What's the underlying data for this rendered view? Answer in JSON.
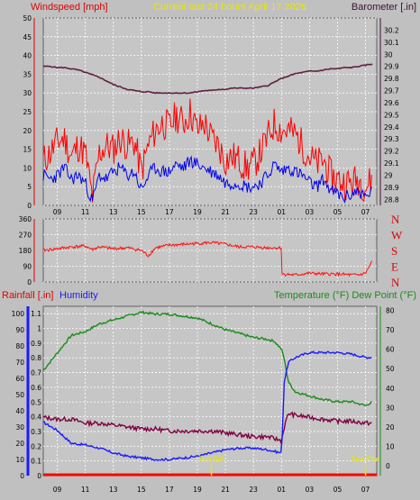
{
  "header": {
    "left_title": "Windspeed [mph]",
    "center_title": "Current last 24 hours April 17 2026",
    "right_title": "Barometer [.in]"
  },
  "bottom_header": {
    "rain_title": "Rainfall [.in]",
    "humidity_title": "Humidity",
    "temp_title": "Temperature (°F) Dew Point (°F)"
  },
  "direction_labels": [
    "N",
    "W",
    "S",
    "E",
    "N"
  ],
  "x_ticks": [
    "09",
    "11",
    "13",
    "15",
    "17",
    "19",
    "21",
    "23",
    "01",
    "03",
    "05",
    "07"
  ],
  "annotations": {
    "sunset": "Sun Set",
    "sunrise": "Sun Rise"
  },
  "colors": {
    "wind_avg": "#0000ee",
    "wind_gust": "#ff0000",
    "barometer": "#602040",
    "direction": "#ff1010",
    "temperature": "#1a8a1a",
    "dewpoint": "#800040",
    "humidity": "#1a1aff",
    "rain": "#ff0000"
  },
  "chart_data": [
    {
      "type": "line",
      "title": "Windspeed [mph]",
      "y_axis_left": {
        "label": "Windspeed [mph]",
        "ticks": [
          "0",
          "5",
          "10",
          "15",
          "20",
          "25",
          "30",
          "35",
          "40",
          "45",
          "50"
        ],
        "ylim": [
          0,
          50
        ]
      },
      "y_axis_right": {
        "label": "Barometer [.in]",
        "ticks": [
          "28.8",
          "28.9",
          "29",
          "29.1",
          "29.2",
          "29.3",
          "29.4",
          "29.5",
          "29.6",
          "29.7",
          "29.8",
          "29.9",
          "30",
          "30.1",
          "30.2"
        ],
        "ylim": [
          28.75,
          30.3
        ]
      },
      "x_hours": [
        8,
        8.5,
        9,
        9.5,
        10,
        10.5,
        11,
        11.5,
        12,
        12.5,
        13,
        13.5,
        14,
        14.5,
        15,
        15.5,
        16,
        16.5,
        17,
        17.5,
        18,
        18.5,
        19,
        19.5,
        20,
        20.5,
        21,
        21.5,
        22,
        22.5,
        23,
        23.5,
        24,
        24.5,
        25,
        25.5,
        26,
        26.5,
        27,
        27.5,
        28,
        28.5,
        29,
        29.5,
        30,
        30.5,
        31,
        31.5
      ],
      "series": [
        {
          "name": "Windspeed",
          "axis": "left",
          "values": [
            8,
            7,
            8,
            10,
            7,
            8,
            6,
            1,
            8,
            7,
            9,
            10,
            8,
            9,
            4,
            8,
            10,
            9,
            9,
            11,
            10,
            12,
            11,
            10,
            9,
            8,
            6,
            6,
            6,
            5,
            5,
            6,
            8,
            11,
            9,
            10,
            9,
            8,
            6,
            5,
            7,
            4,
            3,
            2,
            3,
            4,
            2,
            4
          ]
        },
        {
          "name": "Wind gust",
          "axis": "left",
          "values": [
            12,
            14,
            17,
            18,
            13,
            16,
            14,
            2,
            14,
            16,
            15,
            18,
            16,
            17,
            9,
            16,
            20,
            22,
            21,
            24,
            22,
            25,
            20,
            22,
            18,
            16,
            12,
            13,
            12,
            10,
            11,
            14,
            18,
            22,
            20,
            20,
            19,
            16,
            13,
            11,
            12,
            8,
            7,
            6,
            6,
            7,
            5,
            7
          ]
        },
        {
          "name": "Barometer",
          "axis": "right",
          "values": [
            29.9,
            29.9,
            29.89,
            29.89,
            29.88,
            29.87,
            29.85,
            29.83,
            29.81,
            29.78,
            29.75,
            29.73,
            29.71,
            29.7,
            29.69,
            29.69,
            29.68,
            29.68,
            29.68,
            29.68,
            29.68,
            29.68,
            29.69,
            29.7,
            29.7,
            29.71,
            29.71,
            29.72,
            29.72,
            29.72,
            29.72,
            29.73,
            29.74,
            29.77,
            29.8,
            29.82,
            29.84,
            29.85,
            29.86,
            29.86,
            29.87,
            29.88,
            29.88,
            29.89,
            29.89,
            29.9,
            29.91,
            29.92
          ]
        }
      ]
    },
    {
      "type": "line",
      "title": "Wind direction",
      "y_axis_left": {
        "ticks": [
          "0",
          "90",
          "180",
          "270",
          "360"
        ],
        "ylim": [
          0,
          360
        ]
      },
      "y_axis_right": {
        "labels": [
          "N",
          "W",
          "S",
          "E",
          "N"
        ]
      },
      "x_hours": [
        8,
        9,
        10,
        11,
        11.5,
        12,
        13,
        14,
        15,
        15.5,
        16,
        17,
        18,
        19,
        20,
        21,
        22,
        23,
        24,
        25,
        25.01,
        26,
        27,
        28,
        29,
        30,
        30.5,
        31,
        31.5
      ],
      "series": [
        {
          "name": "Wind direction",
          "values": [
            180,
            190,
            200,
            205,
            185,
            200,
            190,
            195,
            180,
            150,
            195,
            210,
            215,
            220,
            225,
            215,
            200,
            200,
            195,
            195,
            45,
            40,
            50,
            45,
            45,
            40,
            40,
            50,
            120
          ]
        }
      ]
    },
    {
      "type": "line",
      "title": "Rainfall / Humidity / Temperature / Dew Point",
      "y_axis_left_rain": {
        "label": "Rainfall [.in]",
        "ticks": [
          "0",
          "0.1",
          "0.2",
          "0.3",
          "0.4",
          "0.5",
          "0.6",
          "0.7",
          "0.8",
          "0.9",
          "1",
          "1.1"
        ],
        "ylim": [
          0,
          1.15
        ]
      },
      "y_axis_left_humidity": {
        "label": "Humidity",
        "ticks": [
          "0",
          "10",
          "20",
          "30",
          "40",
          "50",
          "60",
          "70",
          "80",
          "90",
          "100"
        ],
        "ylim": [
          0,
          104.5
        ]
      },
      "y_axis_right": {
        "label": "Temperature (°F) Dew Point (°F)",
        "ticks": [
          "0",
          "10",
          "20",
          "30",
          "40",
          "50",
          "60",
          "70",
          "80"
        ],
        "ylim": [
          -5,
          82
        ]
      },
      "x_hours": [
        8,
        9,
        10,
        11,
        12,
        13,
        14,
        15,
        16,
        17,
        18,
        19,
        20,
        21,
        22,
        23,
        24,
        24.5,
        25,
        25.2,
        25.5,
        26,
        27,
        28,
        29,
        30,
        31,
        31.5
      ],
      "series": [
        {
          "name": "Temperature",
          "axis": "right",
          "values": [
            49,
            58,
            67,
            69,
            73,
            75,
            77,
            79,
            78,
            78,
            77,
            76,
            73,
            70,
            68,
            66,
            65,
            64,
            60,
            55,
            43,
            38,
            36,
            34,
            33,
            33,
            31,
            33
          ]
        },
        {
          "name": "Dew Point",
          "axis": "right",
          "values": [
            25,
            24,
            24,
            22,
            22,
            21,
            20,
            19,
            19,
            18,
            18,
            18,
            18,
            17,
            16,
            15,
            15,
            14,
            13,
            20,
            27,
            26,
            25,
            24,
            23,
            23,
            22,
            22
          ]
        },
        {
          "name": "Humidity",
          "axis": "humidity",
          "values": [
            33,
            28,
            20,
            19,
            17,
            14,
            12,
            11,
            10,
            10,
            11,
            12,
            14,
            16,
            17,
            17,
            16,
            15,
            14,
            58,
            70,
            73,
            76,
            76,
            76,
            75,
            73,
            73
          ]
        },
        {
          "name": "Rainfall",
          "axis": "rain",
          "values": [
            0,
            0,
            0,
            0,
            0,
            0,
            0,
            0,
            0,
            0,
            0,
            0,
            0,
            0,
            0,
            0,
            0,
            0,
            0,
            0,
            0,
            0,
            0,
            0,
            0,
            0,
            0,
            0
          ]
        }
      ],
      "annotations": [
        {
          "text": "Sun Set",
          "x": 20
        },
        {
          "text": "Sun Rise",
          "x": 31
        }
      ]
    }
  ]
}
